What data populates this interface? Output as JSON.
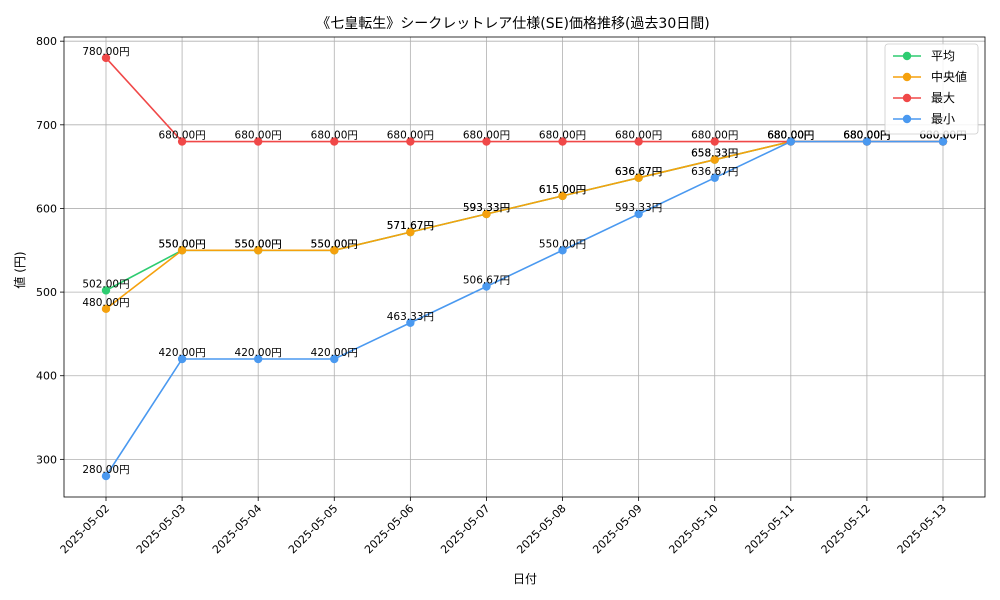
{
  "chart_data": {
    "type": "line",
    "title": "《七皇転生》シークレットレア仕様(SE)価格推移(過去30日間)",
    "xlabel": "日付",
    "ylabel": "値 (円)",
    "ylim": [
      255,
      805
    ],
    "yticks": [
      300,
      400,
      500,
      600,
      700,
      800
    ],
    "grid": true,
    "legend_position": "top-right",
    "label_suffix": "円",
    "categories": [
      "2025-05-02",
      "2025-05-03",
      "2025-05-04",
      "2025-05-05",
      "2025-05-06",
      "2025-05-07",
      "2025-05-08",
      "2025-05-09",
      "2025-05-10",
      "2025-05-11",
      "2025-05-12",
      "2025-05-13"
    ],
    "series": [
      {
        "name": "平均",
        "color": "#2ecc71",
        "values": [
          502.0,
          550.0,
          550.0,
          550.0,
          571.67,
          593.33,
          615.0,
          636.67,
          658.33,
          680.0,
          680.0,
          680.0
        ]
      },
      {
        "name": "中央値",
        "color": "#f5a10d",
        "values": [
          480.0,
          550.0,
          550.0,
          550.0,
          571.67,
          593.33,
          615.0,
          636.67,
          658.33,
          680.0,
          680.0,
          680.0
        ]
      },
      {
        "name": "最大",
        "color": "#f04848",
        "values": [
          780.0,
          680.0,
          680.0,
          680.0,
          680.0,
          680.0,
          680.0,
          680.0,
          680.0,
          680.0,
          680.0,
          680.0
        ]
      },
      {
        "name": "最小",
        "color": "#4a99f0",
        "values": [
          280.0,
          420.0,
          420.0,
          420.0,
          463.33,
          506.67,
          550.0,
          593.33,
          636.67,
          680.0,
          680.0,
          680.0
        ]
      }
    ]
  }
}
